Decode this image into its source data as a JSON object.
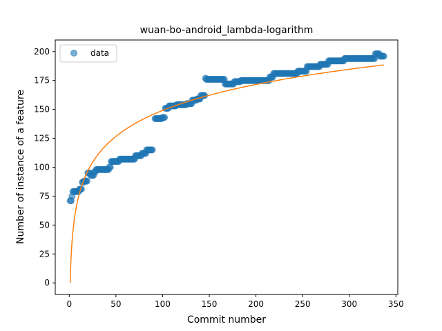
{
  "chart_data": {
    "type": "scatter",
    "title": "wuan-bo-android_lambda-logarithm",
    "xlabel": "Commit number",
    "ylabel": "Number of instance of a feature",
    "xlim": [
      -15,
      352
    ],
    "ylim": [
      -10,
      210
    ],
    "xticks": [
      "0",
      "50",
      "100",
      "150",
      "200",
      "250",
      "300",
      "350"
    ],
    "yticks": [
      "0",
      "25",
      "50",
      "75",
      "100",
      "125",
      "150",
      "175",
      "200"
    ],
    "legend": {
      "position": "upper-left",
      "entries": [
        "data"
      ]
    },
    "grid": false,
    "colors": {
      "data": "#1f77b4",
      "fit": "#ff7f0e"
    },
    "series": [
      {
        "name": "data",
        "kind": "points",
        "segments": [
          {
            "x_start": 1,
            "x_end": 1,
            "y": 71
          },
          {
            "x_start": 2,
            "x_end": 2,
            "y": 71
          },
          {
            "x_start": 3,
            "x_end": 3,
            "y": 75
          },
          {
            "x_start": 4,
            "x_end": 10,
            "y": 79
          },
          {
            "x_start": 11,
            "x_end": 13,
            "y": 81
          },
          {
            "x_start": 14,
            "x_end": 15,
            "y": 87
          },
          {
            "x_start": 16,
            "x_end": 19,
            "y": 88
          },
          {
            "x_start": 20,
            "x_end": 22,
            "y": 95
          },
          {
            "x_start": 23,
            "x_end": 26,
            "y": 93
          },
          {
            "x_start": 27,
            "x_end": 28,
            "y": 96
          },
          {
            "x_start": 29,
            "x_end": 42,
            "y": 98
          },
          {
            "x_start": 43,
            "x_end": 44,
            "y": 100
          },
          {
            "x_start": 45,
            "x_end": 53,
            "y": 105
          },
          {
            "x_start": 54,
            "x_end": 70,
            "y": 107
          },
          {
            "x_start": 71,
            "x_end": 77,
            "y": 110
          },
          {
            "x_start": 78,
            "x_end": 82,
            "y": 112
          },
          {
            "x_start": 83,
            "x_end": 89,
            "y": 115
          },
          {
            "x_start": 92,
            "x_end": 99,
            "y": 142
          },
          {
            "x_start": 100,
            "x_end": 102,
            "y": 143
          },
          {
            "x_start": 103,
            "x_end": 106,
            "y": 151
          },
          {
            "x_start": 107,
            "x_end": 114,
            "y": 153
          },
          {
            "x_start": 115,
            "x_end": 125,
            "y": 154
          },
          {
            "x_start": 126,
            "x_end": 131,
            "y": 155
          },
          {
            "x_start": 132,
            "x_end": 136,
            "y": 158
          },
          {
            "x_start": 137,
            "x_end": 140,
            "y": 159
          },
          {
            "x_start": 141,
            "x_end": 145,
            "y": 162
          },
          {
            "x_start": 146,
            "x_end": 146,
            "y": 177
          },
          {
            "x_start": 147,
            "x_end": 166,
            "y": 176
          },
          {
            "x_start": 167,
            "x_end": 176,
            "y": 172
          },
          {
            "x_start": 177,
            "x_end": 183,
            "y": 174
          },
          {
            "x_start": 184,
            "x_end": 214,
            "y": 175
          },
          {
            "x_start": 215,
            "x_end": 218,
            "y": 178
          },
          {
            "x_start": 219,
            "x_end": 244,
            "y": 181
          },
          {
            "x_start": 245,
            "x_end": 254,
            "y": 183
          },
          {
            "x_start": 255,
            "x_end": 268,
            "y": 187
          },
          {
            "x_start": 269,
            "x_end": 277,
            "y": 189
          },
          {
            "x_start": 278,
            "x_end": 294,
            "y": 192
          },
          {
            "x_start": 295,
            "x_end": 327,
            "y": 194
          },
          {
            "x_start": 328,
            "x_end": 332,
            "y": 198
          },
          {
            "x_start": 333,
            "x_end": 337,
            "y": 196
          }
        ]
      },
      {
        "name": "",
        "kind": "fit-line",
        "model": "logarithmic",
        "x_range": [
          1,
          337
        ],
        "a": 32.38,
        "b": 0
      }
    ]
  }
}
